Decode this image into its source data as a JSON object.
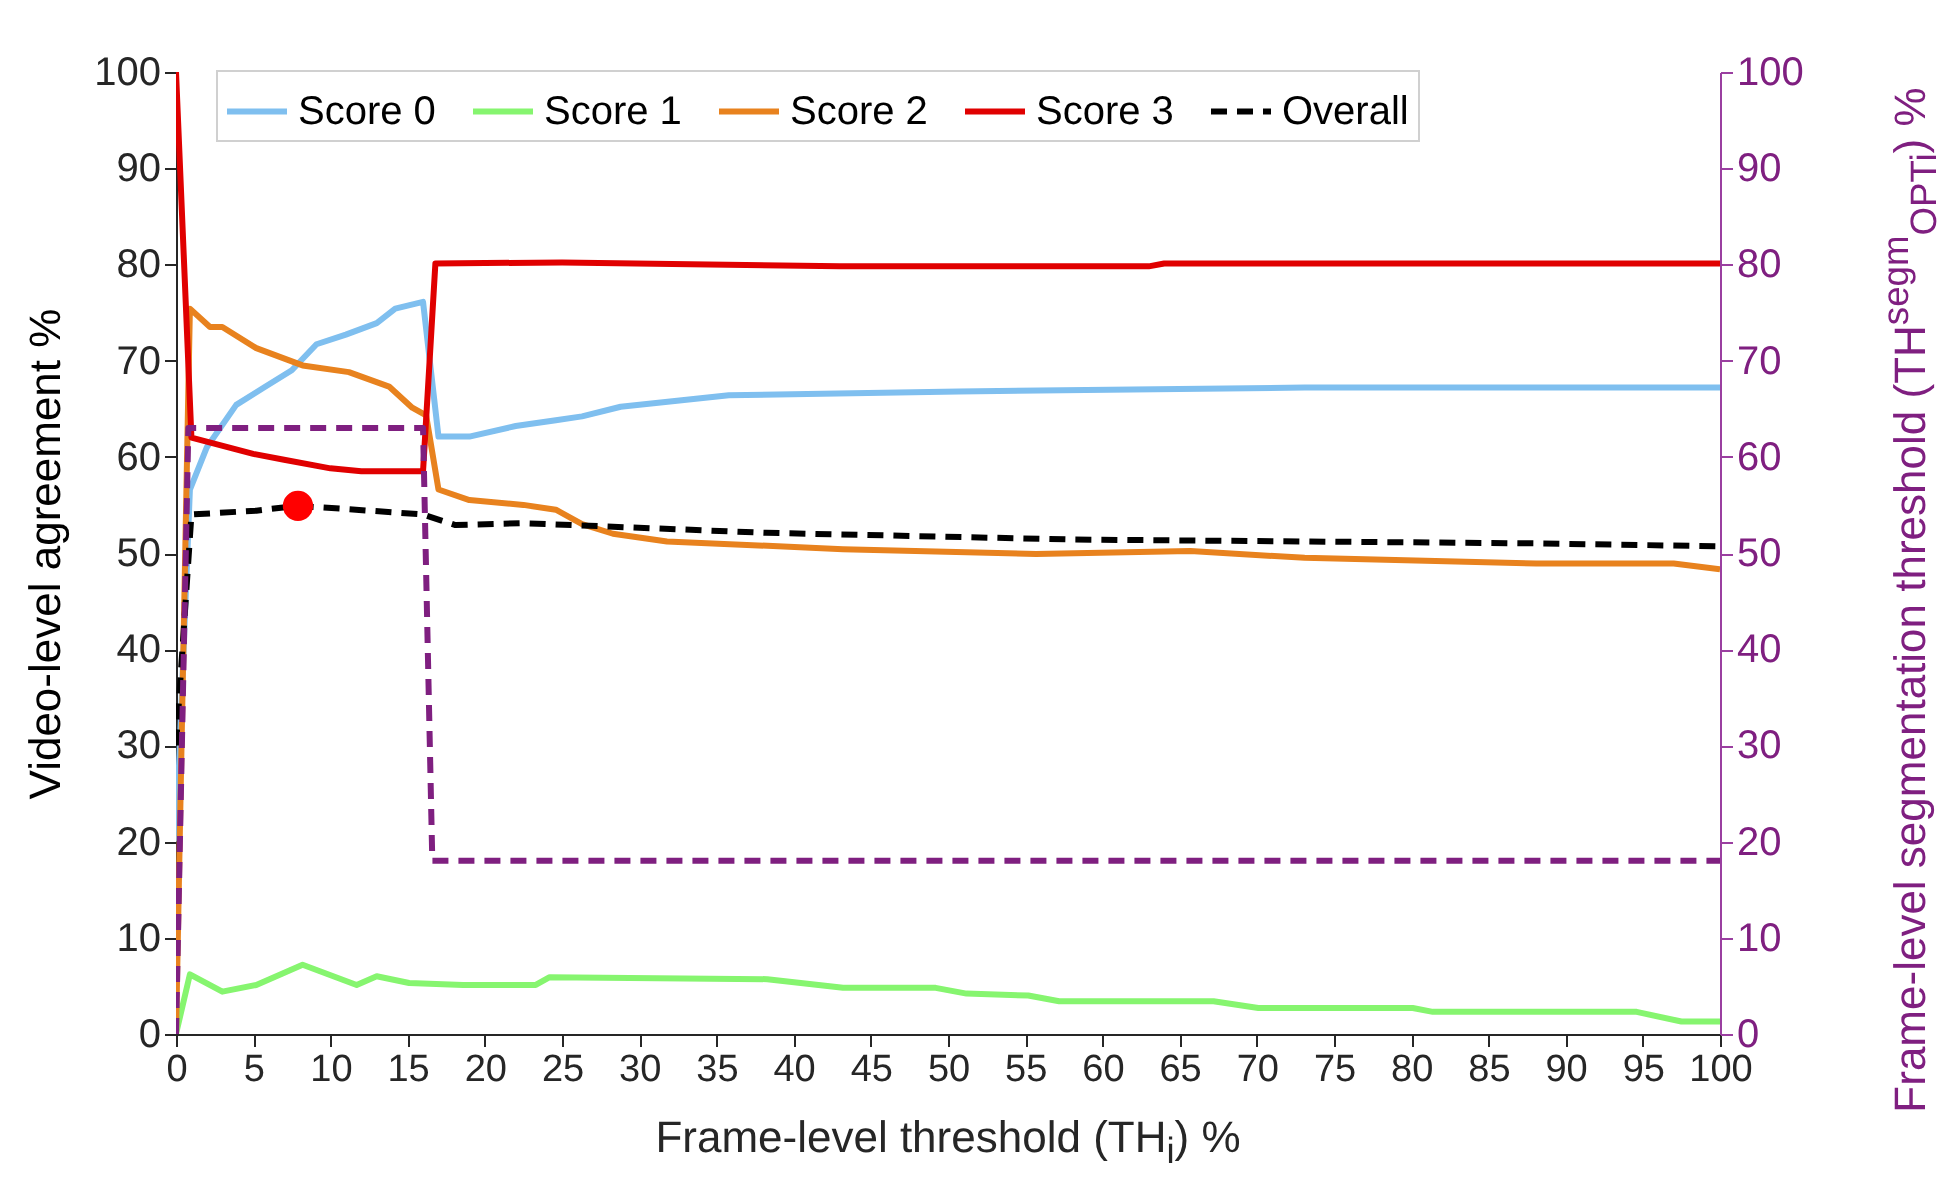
{
  "chart_data": {
    "type": "line",
    "xlabel": "Frame-level threshold (TH$_{i}$) %",
    "ylabel": "Video-level agreement %",
    "y2label": "Frame-level segmentation threshold (TH$^{segm}$$_{OPTi}$) %",
    "xlim": [
      0,
      100
    ],
    "xticks": [
      0,
      5,
      10,
      15,
      20,
      25,
      30,
      35,
      40,
      45,
      50,
      55,
      60,
      65,
      70,
      75,
      80,
      85,
      90,
      95,
      100
    ],
    "ylim": [
      0,
      100
    ],
    "yticks": [
      0,
      10,
      20,
      30,
      40,
      50,
      60,
      70,
      80,
      90,
      100
    ],
    "y2lim": [
      0,
      100
    ],
    "y2ticks": [
      0,
      10,
      20,
      30,
      40,
      50,
      60,
      70,
      80,
      90,
      100
    ],
    "legend": "top",
    "series": [
      {
        "name": "Score 0",
        "color": "#7fbfef",
        "x": [
          0,
          0.9,
          2,
          3.9,
          5.8,
          7.5,
          9.1,
          11,
          13,
          14.2,
          16,
          17,
          19,
          22,
          24.6,
          26.3,
          28.8,
          35.8,
          50.7,
          73.1,
          100
        ],
        "values": [
          20,
          56.6,
          61,
          65.4,
          67.3,
          69,
          71.7,
          72.7,
          73.9,
          75.4,
          76.1,
          62.1,
          62.1,
          63.2,
          63.8,
          64.2,
          65.2,
          66.4,
          66.8,
          67.2,
          67.2
        ]
      },
      {
        "name": "Score 1",
        "color": "#86f56f",
        "x": [
          0,
          0.9,
          3,
          5.2,
          8.2,
          11.7,
          13,
          15.1,
          18.6,
          23.3,
          24.2,
          38.3,
          43.2,
          49.2,
          51.2,
          55.2,
          57.2,
          67.2,
          70.1,
          80.1,
          81.4,
          94.6,
          97.5,
          100
        ],
        "values": [
          0,
          6.2,
          4.4,
          5.1,
          7.2,
          5.1,
          6,
          5.3,
          5.1,
          5.1,
          5.9,
          5.7,
          4.8,
          4.8,
          4.2,
          4,
          3.4,
          3.4,
          2.7,
          2.7,
          2.3,
          2.3,
          1.3,
          1.3
        ]
      },
      {
        "name": "Score 2",
        "color": "#e8821e",
        "x": [
          0,
          0.9,
          2.2,
          3,
          5.2,
          8.2,
          11.2,
          13.8,
          15.3,
          16.2,
          17,
          19,
          22.5,
          24.6,
          26.3,
          28.3,
          31.8,
          43.2,
          55.7,
          65.7,
          73.1,
          88.1,
          97,
          100
        ],
        "values": [
          0,
          75.4,
          73.5,
          73.5,
          71.3,
          69.5,
          68.8,
          67.3,
          65.1,
          64.3,
          56.6,
          55.5,
          55,
          54.5,
          53,
          52,
          51.2,
          50.4,
          49.9,
          50.2,
          49.5,
          48.9,
          48.9,
          48.3
        ]
      },
      {
        "name": "Score 3",
        "color": "#e00000",
        "x": [
          0,
          1,
          5,
          7,
          10,
          12,
          16,
          16.8,
          25,
          43,
          63,
          64,
          100
        ],
        "values": [
          100,
          62,
          60.3,
          59.7,
          58.8,
          58.5,
          58.5,
          80.1,
          80.2,
          79.8,
          79.8,
          80.1,
          80.1
        ]
      },
      {
        "name": "Overall",
        "color": "#000000",
        "line_style": "dashed",
        "x": [
          0,
          1,
          5.2,
          7.8,
          10.8,
          16,
          18.1,
          22.5,
          38.2,
          58.2,
          73.1,
          88.1,
          100
        ],
        "values": [
          30,
          54,
          54.4,
          54.9,
          54.6,
          54,
          52.9,
          53.1,
          52.1,
          51.4,
          51.2,
          51,
          50.7
        ]
      },
      {
        "color": "#7f1f80",
        "axis": "y2",
        "line_style": "dashed",
        "x": [
          0,
          0.8,
          16,
          16.6,
          100
        ],
        "values": [
          0,
          63,
          63,
          18,
          18
        ]
      },
      {
        "type": "scatter",
        "marker": "circle",
        "color": "#ff0000",
        "x": [
          7.9
        ],
        "values": [
          54.9
        ]
      }
    ]
  }
}
